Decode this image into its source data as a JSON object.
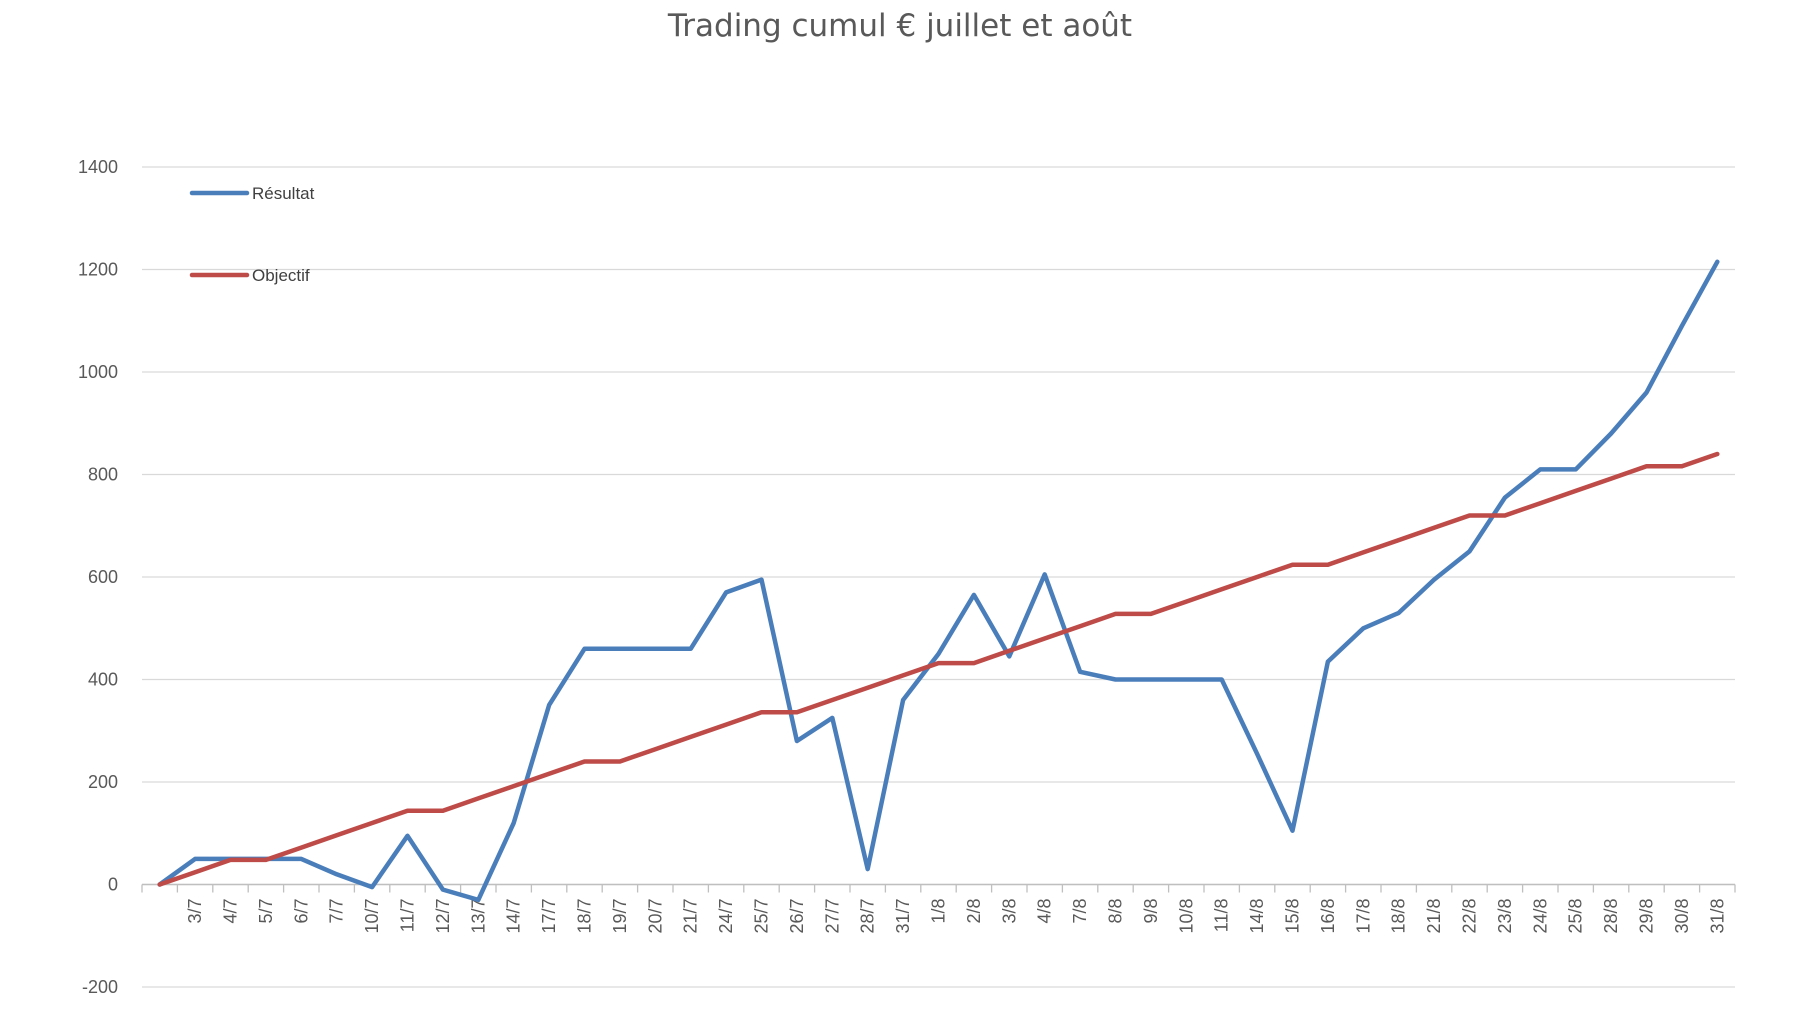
{
  "chart_data": {
    "type": "line",
    "title": "Trading cumul € juillet et août",
    "xlabel": "",
    "ylabel": "",
    "ylim": [
      -200,
      1400
    ],
    "y_ticks": [
      -200,
      0,
      200,
      400,
      600,
      800,
      1000,
      1200,
      1400
    ],
    "grid": "horizontal",
    "legend_position": "top-left",
    "categories": [
      "",
      "3/7",
      "4/7",
      "5/7",
      "6/7",
      "7/7",
      "10/7",
      "11/7",
      "12/7",
      "13/7",
      "14/7",
      "17/7",
      "18/7",
      "19/7",
      "20/7",
      "21/7",
      "24/7",
      "25/7",
      "26/7",
      "27/7",
      "28/7",
      "31/7",
      "1/8",
      "2/8",
      "3/8",
      "4/8",
      "7/8",
      "8/8",
      "9/8",
      "10/8",
      "11/8",
      "14/8",
      "15/8",
      "16/8",
      "17/8",
      "18/8",
      "21/8",
      "22/8",
      "23/8",
      "24/8",
      "25/8",
      "28/8",
      "29/8",
      "30/8",
      "31/8"
    ],
    "series": [
      {
        "name": "Résultat",
        "color": "#4a7ebb",
        "values": [
          0,
          50,
          50,
          50,
          50,
          20,
          -5,
          95,
          -10,
          -30,
          120,
          350,
          460,
          460,
          460,
          460,
          570,
          595,
          280,
          325,
          30,
          360,
          450,
          565,
          445,
          605,
          415,
          400,
          400,
          400,
          400,
          255,
          105,
          435,
          500,
          530,
          595,
          650,
          755,
          810,
          810,
          880,
          960,
          1090,
          1215
        ]
      },
      {
        "name": "Objectif",
        "color": "#be4b48",
        "values": [
          0,
          24,
          48,
          48,
          72,
          96,
          120,
          144,
          144,
          168,
          192,
          216,
          240,
          240,
          264,
          288,
          312,
          336,
          336,
          360,
          384,
          408,
          432,
          432,
          456,
          480,
          504,
          528,
          528,
          552,
          576,
          600,
          624,
          624,
          648,
          672,
          696,
          720,
          720,
          744,
          768,
          792,
          816,
          816,
          840
        ]
      }
    ]
  }
}
